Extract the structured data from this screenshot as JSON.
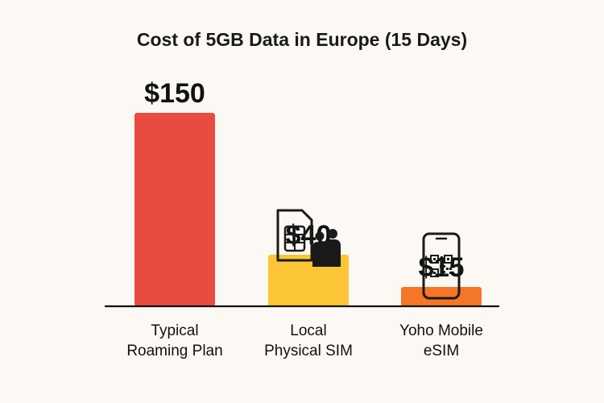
{
  "chart_data": {
    "type": "bar",
    "title": "Cost of 5GB Data in Europe (15 Days)",
    "xlabel": "",
    "ylabel": "",
    "ylim": [
      0,
      150
    ],
    "grid": false,
    "categories": [
      [
        "Typical",
        "Roaming Plan"
      ],
      [
        "Local",
        "Physical SIM"
      ],
      [
        "Yoho Mobile",
        "eSIM"
      ]
    ],
    "values": [
      150,
      40,
      15
    ],
    "value_labels": [
      "$150",
      "$40",
      "$15"
    ],
    "colors": [
      "#E84B3F",
      "#FCC535",
      "#F47626"
    ],
    "icons": [
      "",
      "sim-card-with-people-icon",
      "smartphone-qr-code-icon"
    ]
  }
}
